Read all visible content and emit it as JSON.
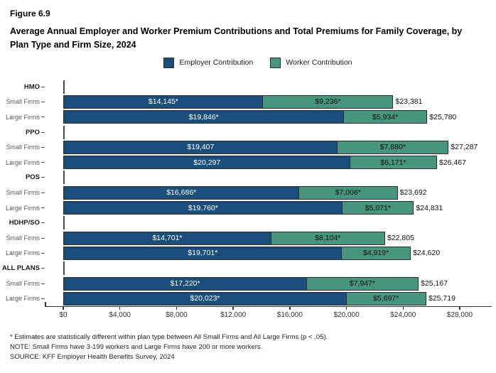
{
  "figure": {
    "label": "Figure 6.9",
    "title": "Average Annual Employer and Worker Premium Contributions and Total Premiums for Family Coverage, by Plan Type and Firm Size, 2024"
  },
  "legend": [
    {
      "label": "Employer Contribution",
      "color": "#1b4e7a"
    },
    {
      "label": "Worker Contribution",
      "color": "#47957f"
    }
  ],
  "chart_data": {
    "type": "bar",
    "orientation": "horizontal",
    "stacked": true,
    "title": "Average Annual Employer and Worker Premium Contributions and Total Premiums for Family Coverage, by Plan Type and Firm Size, 2024",
    "xlabel": "",
    "ylabel": "",
    "xlim": [
      0,
      30500
    ],
    "grid": false,
    "legend_position": "top-center",
    "series_names": [
      "Employer Contribution",
      "Worker Contribution"
    ],
    "colors": {
      "employer": "#1b4e7a",
      "worker": "#47957f",
      "bar_border": "#2d2d35"
    },
    "x_ticks": [
      "$0",
      "$4,000",
      "$8,000",
      "$12,000",
      "$16,000",
      "$20,000",
      "$24,000",
      "$28,000"
    ],
    "x_tick_values": [
      0,
      4000,
      8000,
      12000,
      16000,
      20000,
      24000,
      28000
    ],
    "groups": [
      {
        "plan": "HMO",
        "rows": [
          {
            "firm": "Small Firms",
            "employer": 14145,
            "employer_label": "$14,145*",
            "worker": 9236,
            "worker_label": "$9,236*",
            "total": 23381,
            "total_label": "$23,381"
          },
          {
            "firm": "Large Firms",
            "employer": 19846,
            "employer_label": "$19,846*",
            "worker": 5934,
            "worker_label": "$5,934*",
            "total": 25780,
            "total_label": "$25,780"
          }
        ]
      },
      {
        "plan": "PPO",
        "rows": [
          {
            "firm": "Small Firms",
            "employer": 19407,
            "employer_label": "$19,407",
            "worker": 7880,
            "worker_label": "$7,880*",
            "total": 27287,
            "total_label": "$27,287"
          },
          {
            "firm": "Large Firms",
            "employer": 20297,
            "employer_label": "$20,297",
            "worker": 6171,
            "worker_label": "$6,171*",
            "total": 26467,
            "total_label": "$26,467"
          }
        ]
      },
      {
        "plan": "POS",
        "rows": [
          {
            "firm": "Small Firms",
            "employer": 16686,
            "employer_label": "$16,686*",
            "worker": 7006,
            "worker_label": "$7,006*",
            "total": 23692,
            "total_label": "$23,692"
          },
          {
            "firm": "Large Firms",
            "employer": 19760,
            "employer_label": "$19,760*",
            "worker": 5071,
            "worker_label": "$5,071*",
            "total": 24831,
            "total_label": "$24,831"
          }
        ]
      },
      {
        "plan": "HDHP/SO",
        "rows": [
          {
            "firm": "Small Firms",
            "employer": 14701,
            "employer_label": "$14,701*",
            "worker": 8104,
            "worker_label": "$8,104*",
            "total": 22805,
            "total_label": "$22,805"
          },
          {
            "firm": "Large Firms",
            "employer": 19701,
            "employer_label": "$19,701*",
            "worker": 4919,
            "worker_label": "$4,919*",
            "total": 24620,
            "total_label": "$24,620"
          }
        ]
      },
      {
        "plan": "ALL PLANS",
        "rows": [
          {
            "firm": "Small Firms",
            "employer": 17220,
            "employer_label": "$17,220*",
            "worker": 7947,
            "worker_label": "$7,947*",
            "total": 25167,
            "total_label": "$25,167"
          },
          {
            "firm": "Large Firms",
            "employer": 20023,
            "employer_label": "$20,023*",
            "worker": 5697,
            "worker_label": "$5,697*",
            "total": 25719,
            "total_label": "$25,719"
          }
        ]
      }
    ]
  },
  "footnotes": [
    "* Estimates are statistically different within plan type between All Small Firms and All Large Firms (p < .05).",
    "NOTE: Small Firms have 3-199 workers and Large Firms have 200 or more workers.",
    "SOURCE: KFF Employer Health Benefits Survey, 2024"
  ]
}
